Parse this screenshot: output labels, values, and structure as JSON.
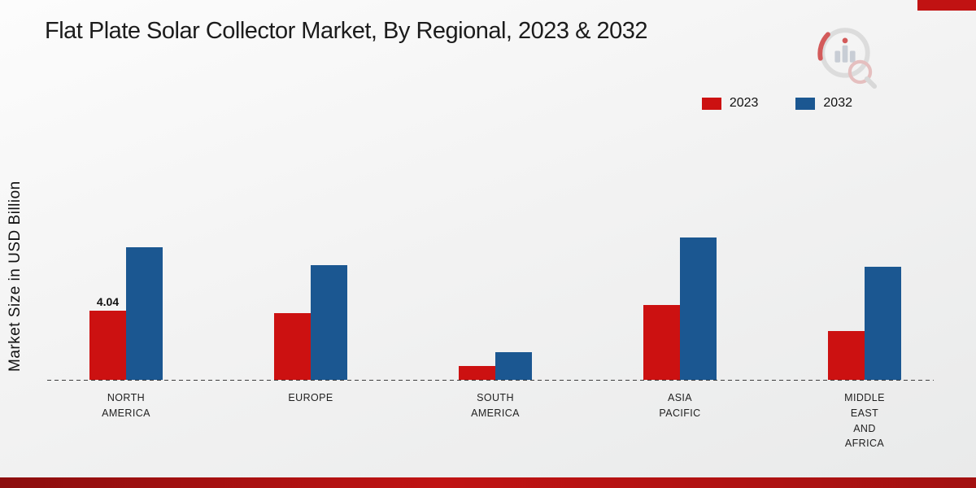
{
  "chart_data": {
    "type": "bar",
    "title": "Flat Plate Solar Collector Market, By Regional, 2023 & 2032",
    "ylabel": "Market Size in USD Billion",
    "ylim": [
      0,
      9
    ],
    "grid": false,
    "legend_position": "top-right",
    "categories": [
      "NORTH AMERICA",
      "EUROPE",
      "SOUTH AMERICA",
      "ASIA PACIFIC",
      "MIDDLE EAST AND AFRICA"
    ],
    "category_lines": [
      [
        "NORTH",
        "AMERICA"
      ],
      [
        "EUROPE"
      ],
      [
        "SOUTH",
        "AMERICA"
      ],
      [
        "ASIA",
        "PACIFIC"
      ],
      [
        "MIDDLE",
        "EAST",
        "AND",
        "AFRICA"
      ]
    ],
    "series": [
      {
        "name": "2023",
        "color": "#cc1111",
        "values": [
          4.04,
          3.9,
          0.8,
          4.35,
          2.85
        ]
      },
      {
        "name": "2032",
        "color": "#1b5791",
        "values": [
          7.7,
          6.7,
          1.6,
          8.3,
          6.6
        ]
      }
    ],
    "annotations": [
      {
        "series": "2023",
        "category_index": 0,
        "text": "4.04"
      }
    ]
  },
  "accents": {
    "corner_block_color": "#c11212",
    "bottom_band_color": "#a31212"
  }
}
